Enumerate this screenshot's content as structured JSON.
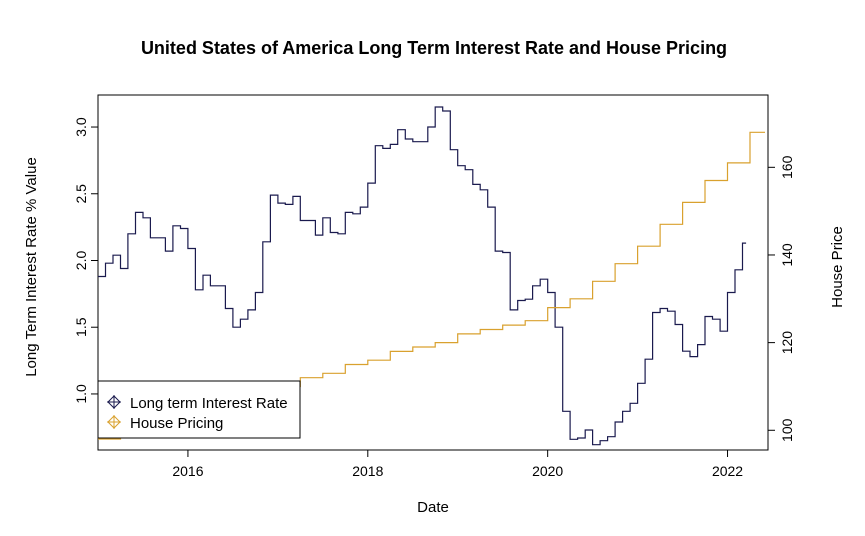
{
  "chart_data": {
    "type": "line",
    "title": "United States of America Long Term Interest Rate and House Pricing",
    "xlabel": "Date",
    "ylabel_left": "Long Term Interest Rate % Value",
    "ylabel_right": "House Price",
    "xlim": [
      2015.0,
      2022.45
    ],
    "ylim_left": [
      0.58,
      3.24
    ],
    "ylim_right": [
      95.5,
      176.5
    ],
    "x_ticks": [
      2016,
      2018,
      2020,
      2022
    ],
    "y_left_ticks": [
      "1.0",
      "1.5",
      "2.0",
      "2.5",
      "3.0"
    ],
    "y_right_ticks": [
      "100",
      "120",
      "140",
      "160"
    ],
    "legend": {
      "position": "bottom-left",
      "entries": [
        {
          "label": "Long term Interest Rate",
          "color": "#1a1a4e"
        },
        {
          "label": "House Pricing",
          "color": "#d9a12e"
        }
      ]
    },
    "series": [
      {
        "name": "Long term Interest Rate",
        "axis": "left",
        "color": "#1a1a4e",
        "step": true,
        "x": [
          2015.0,
          2015.083,
          2015.167,
          2015.25,
          2015.333,
          2015.417,
          2015.5,
          2015.583,
          2015.667,
          2015.75,
          2015.833,
          2015.917,
          2016.0,
          2016.083,
          2016.167,
          2016.25,
          2016.333,
          2016.417,
          2016.5,
          2016.583,
          2016.667,
          2016.75,
          2016.833,
          2016.917,
          2017.0,
          2017.083,
          2017.167,
          2017.25,
          2017.333,
          2017.417,
          2017.5,
          2017.583,
          2017.667,
          2017.75,
          2017.833,
          2017.917,
          2018.0,
          2018.083,
          2018.167,
          2018.25,
          2018.333,
          2018.417,
          2018.5,
          2018.583,
          2018.667,
          2018.75,
          2018.833,
          2018.917,
          2019.0,
          2019.083,
          2019.167,
          2019.25,
          2019.333,
          2019.417,
          2019.5,
          2019.583,
          2019.667,
          2019.75,
          2019.833,
          2019.917,
          2020.0,
          2020.083,
          2020.167,
          2020.25,
          2020.333,
          2020.417,
          2020.5,
          2020.583,
          2020.667,
          2020.75,
          2020.833,
          2020.917,
          2021.0,
          2021.083,
          2021.167,
          2021.25,
          2021.333,
          2021.417,
          2021.5,
          2021.583,
          2021.667,
          2021.75,
          2021.833,
          2021.917,
          2022.0,
          2022.083,
          2022.167
        ],
        "values": [
          1.88,
          1.98,
          2.04,
          1.94,
          2.2,
          2.36,
          2.32,
          2.17,
          2.17,
          2.07,
          2.26,
          2.24,
          2.09,
          1.78,
          1.89,
          1.81,
          1.81,
          1.64,
          1.5,
          1.56,
          1.63,
          1.76,
          2.14,
          2.49,
          2.43,
          2.42,
          2.48,
          2.3,
          2.3,
          2.19,
          2.32,
          2.21,
          2.2,
          2.36,
          2.35,
          2.4,
          2.58,
          2.86,
          2.84,
          2.87,
          2.98,
          2.91,
          2.89,
          2.89,
          3.0,
          3.15,
          3.12,
          2.83,
          2.71,
          2.68,
          2.57,
          2.53,
          2.4,
          2.07,
          2.06,
          1.63,
          1.7,
          1.71,
          1.81,
          1.86,
          1.76,
          1.5,
          0.87,
          0.66,
          0.67,
          0.73,
          0.62,
          0.65,
          0.68,
          0.79,
          0.87,
          0.93,
          1.08,
          1.26,
          1.61,
          1.64,
          1.62,
          1.52,
          1.32,
          1.28,
          1.37,
          1.58,
          1.56,
          1.47,
          1.76,
          1.93,
          2.13
        ]
      },
      {
        "name": "House Pricing",
        "axis": "right",
        "color": "#d9a12e",
        "step": true,
        "x": [
          2015.0,
          2015.25,
          2015.5,
          2015.75,
          2016.0,
          2016.25,
          2016.5,
          2016.75,
          2017.0,
          2017.25,
          2017.5,
          2017.75,
          2018.0,
          2018.25,
          2018.5,
          2018.75,
          2019.0,
          2019.25,
          2019.5,
          2019.75,
          2020.0,
          2020.25,
          2020.5,
          2020.75,
          2021.0,
          2021.25,
          2021.5,
          2021.75,
          2022.0,
          2022.25
        ],
        "values": [
          98,
          100,
          101,
          103,
          104,
          106,
          107,
          108,
          110,
          112,
          113,
          115,
          116,
          118,
          119,
          120,
          122,
          123,
          124,
          125,
          128,
          130,
          134,
          138,
          142,
          147,
          152,
          157,
          161,
          168
        ]
      }
    ]
  }
}
